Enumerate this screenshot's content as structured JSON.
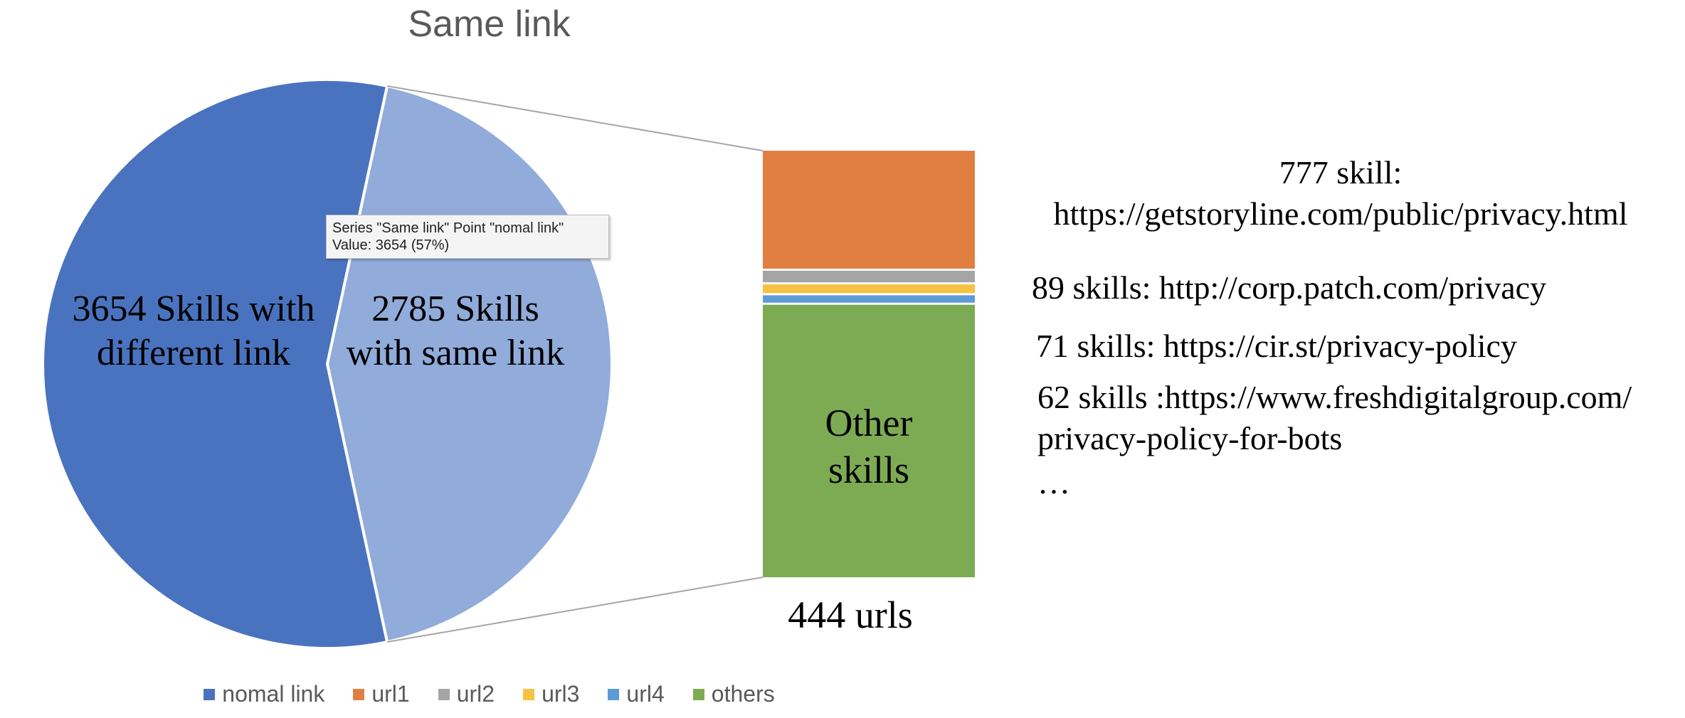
{
  "chart_data": {
    "type": "pie",
    "title": "Same link",
    "pie": {
      "slices": [
        {
          "name": "nomal link",
          "value": 3654,
          "label": "3654 Skills with\ndifferent link",
          "color": "#4a73bf"
        },
        {
          "name": "Same link",
          "value": 2785,
          "label": "2785 Skills\nwith same link",
          "color": "#91abda"
        }
      ]
    },
    "bar_of_pie": {
      "segments": [
        {
          "name": "url1",
          "value": 777,
          "color": "#e07f41"
        },
        {
          "name": "url2",
          "value": 89,
          "color": "#a5a5a5"
        },
        {
          "name": "url3",
          "value": 71,
          "color": "#f6c243"
        },
        {
          "name": "url4",
          "value": 62,
          "color": "#5c9bd6"
        },
        {
          "name": "others",
          "value": 1786,
          "color": "#7dab54",
          "label": "Other\nskills"
        }
      ],
      "bottom_label": "444 urls"
    },
    "tooltip": {
      "line1": "Series \"Same link\" Point \"nomal link\"",
      "line2": "Value: 3654 (57%)"
    },
    "annotations": {
      "a1_line1": "777 skill:",
      "a1_line2": "https://getstoryline.com/public/privacy.html",
      "a2": "89 skills: http://corp.patch.com/privacy",
      "a3": "71 skills: https://cir.st/privacy-policy",
      "a4_line1": "62 skills :https://www.freshdigitalgroup.com/",
      "a4_line2": "privacy-policy-for-bots",
      "a5": "…"
    },
    "legend": {
      "position": "bottom",
      "items": [
        {
          "name": "nomal link",
          "color": "#4a73bf"
        },
        {
          "name": "url1",
          "color": "#e07f41"
        },
        {
          "name": "url2",
          "color": "#a5a5a5"
        },
        {
          "name": "url3",
          "color": "#f6c243"
        },
        {
          "name": "url4",
          "color": "#5c9bd6"
        },
        {
          "name": "others",
          "color": "#7dab54"
        }
      ]
    }
  }
}
